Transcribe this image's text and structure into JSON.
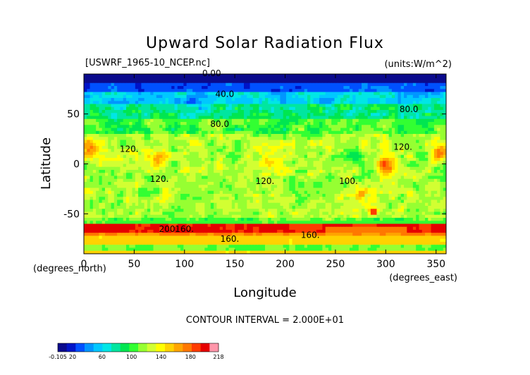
{
  "chart_data": {
    "type": "heatmap",
    "title": "Upward Solar Radiation Flux",
    "file_label": "[USWRF_1965-10_NCEP.nc]",
    "units_label": "(units:W/m^2)",
    "xlabel": "Longitude",
    "ylabel": "Latitude",
    "x_unit": "(degrees_east)",
    "y_unit": "(degrees_north)",
    "xlim": [
      0,
      360
    ],
    "ylim": [
      -90,
      90
    ],
    "x_ticks": [
      "0",
      "50",
      "100",
      "150",
      "200",
      "250",
      "300",
      "350"
    ],
    "x_tick_values": [
      0,
      50,
      100,
      150,
      200,
      250,
      300,
      350
    ],
    "y_ticks": [
      "50",
      "0",
      "-50"
    ],
    "y_tick_values": [
      50,
      0,
      -50
    ],
    "contour_interval_text": "CONTOUR INTERVAL = 2.000E+01",
    "contour_labels": [
      {
        "text": "0.00",
        "lon": 127,
        "lat": 88
      },
      {
        "text": "40.0",
        "lon": 140,
        "lat": 67
      },
      {
        "text": "80.0",
        "lon": 323,
        "lat": 52
      },
      {
        "text": "80.0",
        "lon": 135,
        "lat": 37
      },
      {
        "text": "120.",
        "lon": 45,
        "lat": 12
      },
      {
        "text": "120.",
        "lon": 317,
        "lat": 14
      },
      {
        "text": "120.",
        "lon": 75,
        "lat": -18
      },
      {
        "text": "120.",
        "lon": 180,
        "lat": -20
      },
      {
        "text": "100.",
        "lon": 263,
        "lat": -20
      },
      {
        "text": "200.",
        "lon": 84,
        "lat": -68
      },
      {
        "text": "160.",
        "lon": 100,
        "lat": -68
      },
      {
        "text": "160.",
        "lon": 225,
        "lat": -74
      },
      {
        "text": "160.",
        "lon": 145,
        "lat": -78
      }
    ],
    "colorbar": {
      "min": -0.105,
      "max": 218,
      "tick_labels": [
        "-0.105",
        "20",
        "60",
        "100",
        "140",
        "180",
        "218"
      ],
      "tick_values": [
        -0.105,
        20,
        60,
        100,
        140,
        180,
        218
      ],
      "colors": [
        "#0a0a8c",
        "#0014c8",
        "#0050ff",
        "#0096ff",
        "#00c8ff",
        "#00e6e6",
        "#00e6a0",
        "#00e650",
        "#32ff32",
        "#96ff32",
        "#d2ff32",
        "#ffff00",
        "#ffd200",
        "#ffa500",
        "#ff7800",
        "#ff3c00",
        "#e60000",
        "#ff96aa"
      ]
    },
    "field_description_levels": [
      {
        "lat_band": [
          80,
          90
        ],
        "value": 5
      },
      {
        "lat_band": [
          65,
          80
        ],
        "value": 45
      },
      {
        "lat_band": [
          40,
          65
        ],
        "value": 80
      },
      {
        "lat_band": [
          20,
          40
        ],
        "value": 110
      },
      {
        "lat_band": [
          -20,
          20
        ],
        "value": 125
      },
      {
        "lat_band": [
          -55,
          -20
        ],
        "value": 120
      },
      {
        "lat_band": [
          -62,
          -55
        ],
        "value": 110
      },
      {
        "lat_band": [
          -72,
          -62
        ],
        "value": 185
      },
      {
        "lat_band": [
          -82,
          -72
        ],
        "value": 165
      },
      {
        "lat_band": [
          -90,
          -82
        ],
        "value": 110
      }
    ]
  }
}
